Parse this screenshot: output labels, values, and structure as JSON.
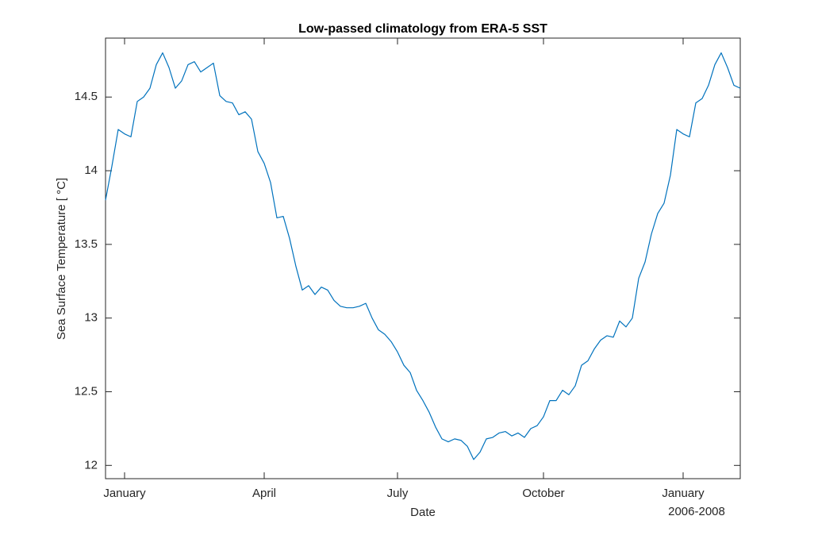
{
  "chart_data": {
    "type": "line",
    "title": "Low-passed climatology from ERA-5 SST",
    "xlabel": "Date",
    "xlabel_secondary": "2006-2008",
    "ylabel": "Sea Surface Temperature [ °C]",
    "categories": [
      null,
      null,
      null,
      "January",
      null,
      null,
      null,
      null,
      null,
      null,
      null,
      null,
      null,
      null,
      null,
      null,
      null,
      null,
      null,
      null,
      null,
      null,
      null,
      null,
      null,
      "April",
      null,
      null,
      null,
      null,
      null,
      null,
      null,
      null,
      null,
      null,
      null,
      null,
      null,
      null,
      null,
      null,
      null,
      null,
      null,
      null,
      "July",
      null,
      null,
      null,
      null,
      null,
      null,
      null,
      null,
      null,
      null,
      null,
      null,
      null,
      null,
      null,
      null,
      null,
      null,
      null,
      null,
      null,
      null,
      "October",
      null,
      null,
      null,
      null,
      null,
      null,
      null,
      null,
      null,
      null,
      null,
      null,
      null,
      null,
      null,
      null,
      null,
      null,
      null,
      null,
      null,
      "January",
      null,
      null,
      null,
      null,
      null,
      null,
      null,
      null,
      null
    ],
    "values": [
      13.8,
      14.03,
      14.28,
      14.25,
      14.23,
      14.47,
      14.5,
      14.56,
      14.72,
      14.8,
      14.7,
      14.56,
      14.61,
      14.72,
      14.74,
      14.67,
      14.7,
      14.73,
      14.51,
      14.47,
      14.46,
      14.38,
      14.4,
      14.35,
      14.13,
      14.05,
      13.92,
      13.68,
      13.69,
      13.54,
      13.35,
      13.19,
      13.22,
      13.16,
      13.21,
      13.19,
      13.12,
      13.08,
      13.07,
      13.07,
      13.08,
      13.1,
      13.0,
      12.92,
      12.89,
      12.84,
      12.77,
      12.68,
      12.63,
      12.51,
      12.44,
      12.36,
      12.26,
      12.18,
      12.16,
      12.18,
      12.17,
      12.13,
      12.04,
      12.09,
      12.18,
      12.19,
      12.22,
      12.23,
      12.2,
      12.22,
      12.19,
      12.25,
      12.27,
      12.33,
      12.44,
      12.44,
      12.51,
      12.48,
      12.54,
      12.68,
      12.71,
      12.79,
      12.85,
      12.88,
      12.87,
      12.98,
      12.94,
      13.0,
      13.27,
      13.38,
      13.57,
      13.71,
      13.78,
      13.97,
      14.28,
      14.25,
      14.23,
      14.46,
      14.49,
      14.58,
      14.72,
      14.8,
      14.7,
      14.58,
      14.56
    ],
    "color": "#0072bd",
    "ylim": [
      11.91,
      14.9
    ],
    "yticks": [
      12,
      12.5,
      13,
      13.5,
      14,
      14.5
    ],
    "grid": false
  }
}
